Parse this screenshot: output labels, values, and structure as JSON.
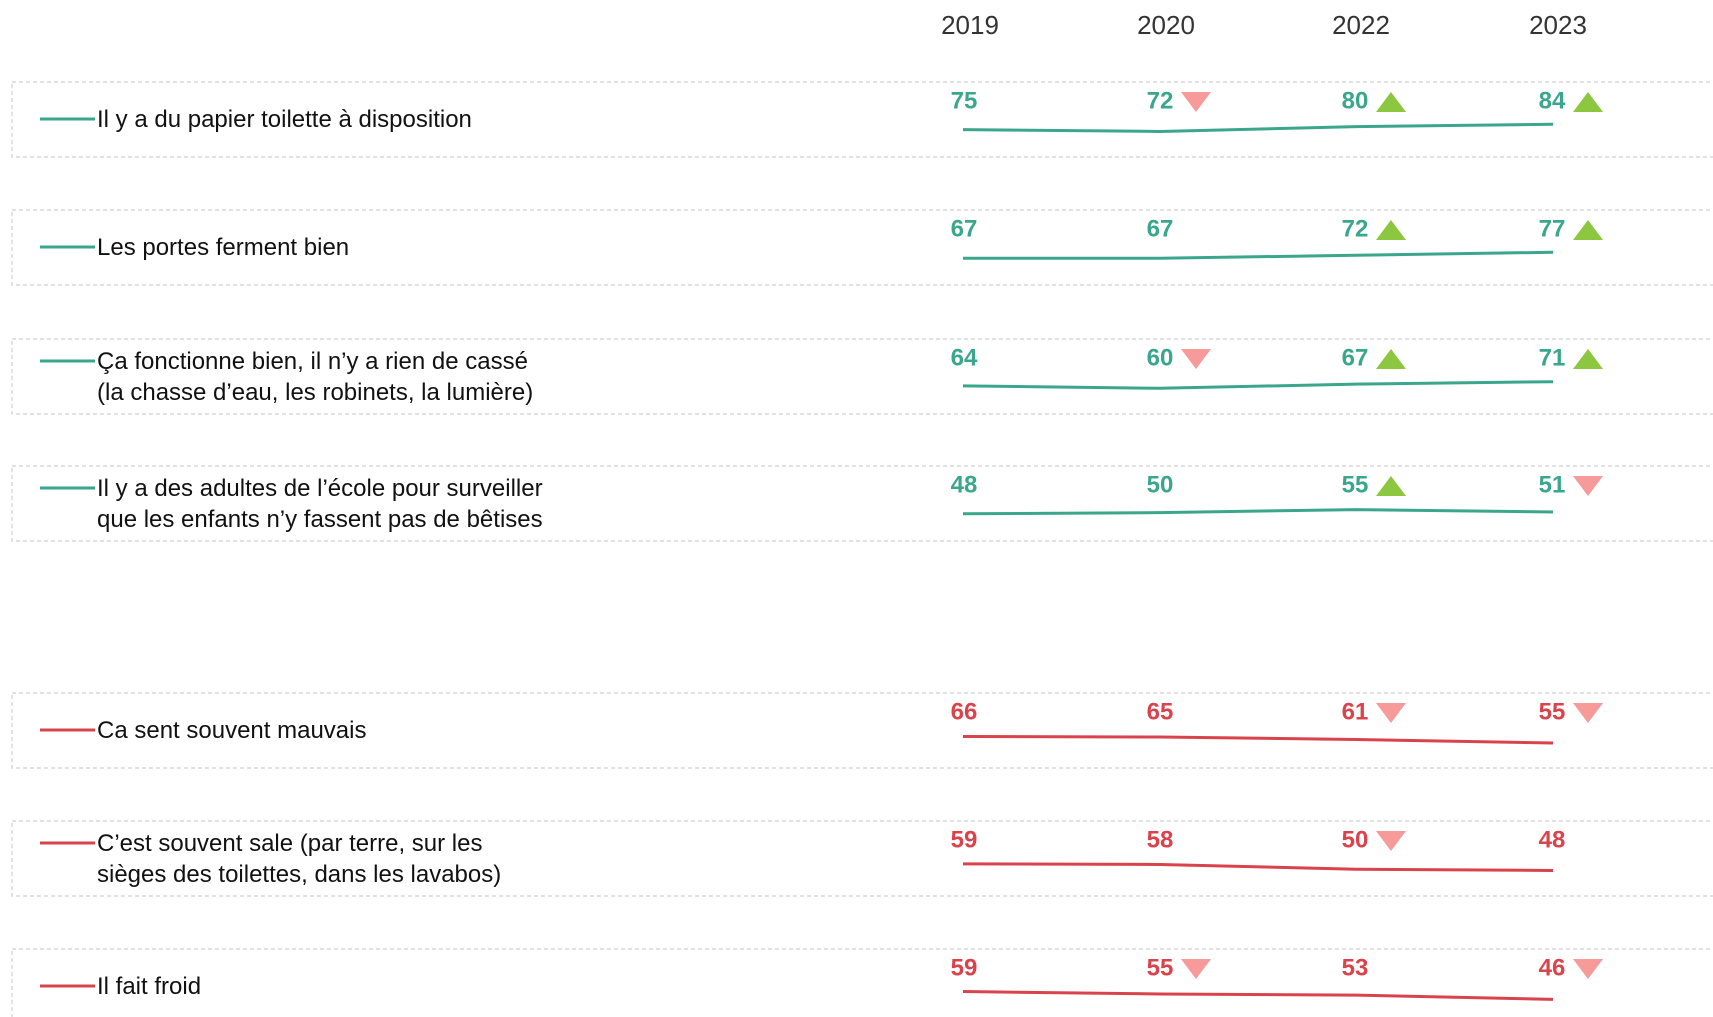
{
  "chart_data": {
    "type": "line",
    "categories": [
      "2019",
      "2020",
      "2022",
      "2023"
    ],
    "series": [
      {
        "name": "Il y a du papier toilette à disposition",
        "color": "#3aa68e",
        "values": [
          75,
          72,
          80,
          84
        ],
        "trend": [
          null,
          "down",
          "up",
          "up"
        ]
      },
      {
        "name": "Les portes ferment bien",
        "color": "#3aa68e",
        "values": [
          67,
          67,
          72,
          77
        ],
        "trend": [
          null,
          null,
          "up",
          "up"
        ]
      },
      {
        "name": "Ça fonctionne bien, il n’y a rien de cassé\n(la chasse d’eau, les robinets, la lumière)",
        "color": "#3aa68e",
        "values": [
          64,
          60,
          67,
          71
        ],
        "trend": [
          null,
          "down",
          "up",
          "up"
        ]
      },
      {
        "name": "Il y a des adultes de l’école pour surveiller\nque les enfants n’y fassent pas de bêtises",
        "color": "#3aa68e",
        "values": [
          48,
          50,
          55,
          51
        ],
        "trend": [
          null,
          null,
          "up",
          "down"
        ]
      },
      {
        "name": "Ca sent souvent mauvais",
        "color": "#d9434b",
        "values": [
          66,
          65,
          61,
          55
        ],
        "trend": [
          null,
          null,
          "down",
          "down"
        ]
      },
      {
        "name": "C’est souvent sale (par terre, sur les\nsièges des toilettes, dans les lavabos)",
        "color": "#d9434b",
        "values": [
          59,
          58,
          50,
          48
        ],
        "trend": [
          null,
          null,
          "down",
          null
        ]
      },
      {
        "name": "Il fait froid",
        "color": "#d9434b",
        "values": [
          59,
          55,
          53,
          46
        ],
        "trend": [
          null,
          "down",
          null,
          "down"
        ]
      }
    ],
    "trend_colors": {
      "up": "#8dc63f",
      "down": "#f79a9a"
    }
  }
}
